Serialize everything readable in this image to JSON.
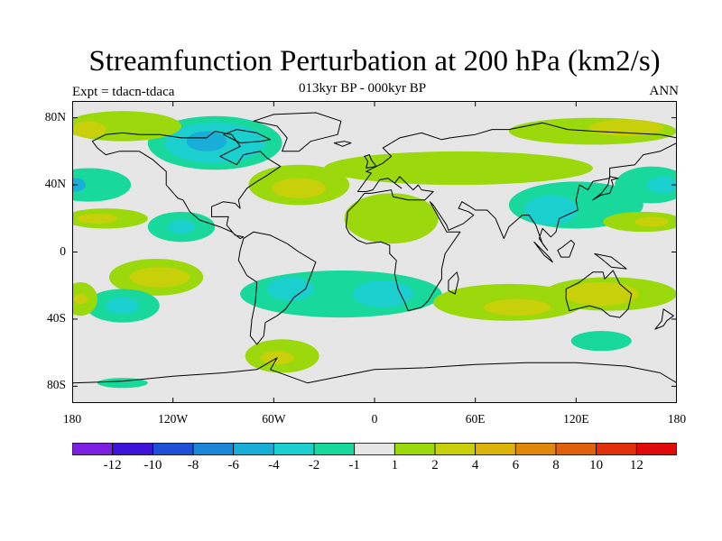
{
  "title": "Streamfunction Perturbation at 200 hPa (km2/s)",
  "subtitle": "013kyr BP - 000kyr BP",
  "experiment": "Expt = tdacn-tdaca",
  "season": "ANN",
  "map": {
    "projection": "cylindrical-equidistant",
    "lon_range": [
      -180,
      180
    ],
    "lat_range": [
      -90,
      90
    ],
    "lat_ticks": [
      {
        "value": 80,
        "label": "80N"
      },
      {
        "value": 40,
        "label": "40N"
      },
      {
        "value": 0,
        "label": "0"
      },
      {
        "value": -40,
        "label": "40S"
      },
      {
        "value": -80,
        "label": "80S"
      }
    ],
    "lon_ticks": [
      {
        "value": -180,
        "label": "180"
      },
      {
        "value": -120,
        "label": "120W"
      },
      {
        "value": -60,
        "label": "60W"
      },
      {
        "value": 0,
        "label": "0"
      },
      {
        "value": 60,
        "label": "60E"
      },
      {
        "value": 120,
        "label": "120E"
      },
      {
        "value": 180,
        "label": "180"
      }
    ],
    "background_color": "#e6e6e6",
    "coastline_color": "#000000"
  },
  "colorbar": {
    "colors": [
      "#7b1fe0",
      "#3d14d8",
      "#1f4fd6",
      "#1a86d8",
      "#18aed8",
      "#1ccfcf",
      "#18d89b",
      "#e6e6e6",
      "#9bd80c",
      "#c8d00a",
      "#dcb30a",
      "#e0870c",
      "#e0600c",
      "#e0300c",
      "#e00a0a"
    ],
    "labels": [
      "-12",
      "-10",
      "-8",
      "-6",
      "-4",
      "-2",
      "-1",
      "1",
      "2",
      "4",
      "6",
      "8",
      "10",
      "12"
    ]
  },
  "regions": [
    {
      "name": "arctic-canada-low",
      "fill": "#18d89b",
      "lon": -95,
      "lat": 65,
      "rx": 40,
      "ry": 16
    },
    {
      "name": "arctic-canada-core",
      "fill": "#1ccfcf",
      "lon": -95,
      "lat": 65,
      "rx": 30,
      "ry": 12
    },
    {
      "name": "arctic-canada-center",
      "fill": "#18aed8",
      "lon": -100,
      "lat": 66,
      "rx": 12,
      "ry": 6
    },
    {
      "name": "north-pacific-band",
      "fill": "#9bd80c",
      "lon": -150,
      "lat": 75,
      "rx": 35,
      "ry": 9
    },
    {
      "name": "north-pacific-high",
      "fill": "#c8d00a",
      "lon": -170,
      "lat": 73,
      "rx": 10,
      "ry": 5
    },
    {
      "name": "west-pacific-low",
      "fill": "#18d89b",
      "lon": -170,
      "lat": 40,
      "rx": 25,
      "ry": 10
    },
    {
      "name": "west-pacific-low-core",
      "fill": "#18aed8",
      "lon": -178,
      "lat": 40,
      "rx": 6,
      "ry": 4
    },
    {
      "name": "n-subtropical-pacific-high",
      "fill": "#9bd80c",
      "lon": -160,
      "lat": 20,
      "rx": 25,
      "ry": 6
    },
    {
      "name": "n-subtropical-pacific-high-core",
      "fill": "#c8d00a",
      "lon": -165,
      "lat": 20,
      "rx": 12,
      "ry": 3
    },
    {
      "name": "eastern-pacific-low",
      "fill": "#18d89b",
      "lon": -115,
      "lat": 15,
      "rx": 20,
      "ry": 9
    },
    {
      "name": "eastern-pacific-low-core",
      "fill": "#1ccfcf",
      "lon": -115,
      "lat": 15,
      "rx": 8,
      "ry": 4
    },
    {
      "name": "north-atlantic-band",
      "fill": "#9bd80c",
      "lon": -45,
      "lat": 40,
      "rx": 30,
      "ry": 12
    },
    {
      "name": "north-atlantic-high",
      "fill": "#c8d00a",
      "lon": -45,
      "lat": 38,
      "rx": 16,
      "ry": 6
    },
    {
      "name": "eurasia-band",
      "fill": "#9bd80c",
      "lon": 50,
      "lat": 50,
      "rx": 80,
      "ry": 10
    },
    {
      "name": "arctic-eurasia-band",
      "fill": "#9bd80c",
      "lon": 130,
      "lat": 72,
      "rx": 50,
      "ry": 8
    },
    {
      "name": "arctic-eurasia-high",
      "fill": "#c8d00a",
      "lon": 150,
      "lat": 74,
      "rx": 22,
      "ry": 5
    },
    {
      "name": "africa-band",
      "fill": "#9bd80c",
      "lon": 10,
      "lat": 20,
      "rx": 28,
      "ry": 15
    },
    {
      "name": "asia-low",
      "fill": "#18d89b",
      "lon": 120,
      "lat": 28,
      "rx": 40,
      "ry": 14
    },
    {
      "name": "asia-low-core",
      "fill": "#1ccfcf",
      "lon": 105,
      "lat": 25,
      "rx": 16,
      "ry": 9
    },
    {
      "name": "nw-pacific-low",
      "fill": "#18d89b",
      "lon": 165,
      "lat": 40,
      "rx": 22,
      "ry": 11
    },
    {
      "name": "nw-pacific-low-core",
      "fill": "#1ccfcf",
      "lon": 172,
      "lat": 40,
      "rx": 10,
      "ry": 5
    },
    {
      "name": "w-pacific-high",
      "fill": "#9bd80c",
      "lon": 160,
      "lat": 18,
      "rx": 24,
      "ry": 6
    },
    {
      "name": "w-pacific-high-core",
      "fill": "#c8d00a",
      "lon": 165,
      "lat": 18,
      "rx": 10,
      "ry": 3
    },
    {
      "name": "se-pacific-high",
      "fill": "#9bd80c",
      "lon": -130,
      "lat": -15,
      "rx": 28,
      "ry": 11
    },
    {
      "name": "se-pacific-high-core",
      "fill": "#c8d00a",
      "lon": -128,
      "lat": -15,
      "rx": 18,
      "ry": 6
    },
    {
      "name": "s-pacific-low",
      "fill": "#18d89b",
      "lon": -150,
      "lat": -32,
      "rx": 22,
      "ry": 10
    },
    {
      "name": "s-pacific-low-core",
      "fill": "#1ccfcf",
      "lon": -150,
      "lat": -32,
      "rx": 10,
      "ry": 5
    },
    {
      "name": "far-sw-pacific-high",
      "fill": "#9bd80c",
      "lon": -175,
      "lat": -28,
      "rx": 10,
      "ry": 10
    },
    {
      "name": "far-sw-pacific-high-core",
      "fill": "#c8d00a",
      "lon": -175,
      "lat": -28,
      "rx": 4,
      "ry": 3
    },
    {
      "name": "south-atlantic-low",
      "fill": "#18d89b",
      "lon": -20,
      "lat": -25,
      "rx": 60,
      "ry": 14
    },
    {
      "name": "south-atlantic-low-core-west",
      "fill": "#1ccfcf",
      "lon": -50,
      "lat": -22,
      "rx": 14,
      "ry": 7
    },
    {
      "name": "south-atlantic-low-core-east",
      "fill": "#1ccfcf",
      "lon": 5,
      "lat": -25,
      "rx": 18,
      "ry": 8
    },
    {
      "name": "south-atlantic-subpolar-high",
      "fill": "#9bd80c",
      "lon": -55,
      "lat": -62,
      "rx": 22,
      "ry": 10
    },
    {
      "name": "south-atlantic-subpolar-high-core",
      "fill": "#c8d00a",
      "lon": -58,
      "lat": -63,
      "rx": 10,
      "ry": 4
    },
    {
      "name": "indian-ocean-high",
      "fill": "#9bd80c",
      "lon": 80,
      "lat": -30,
      "rx": 45,
      "ry": 11
    },
    {
      "name": "indian-ocean-high-core",
      "fill": "#c8d00a",
      "lon": 85,
      "lat": -33,
      "rx": 20,
      "ry": 5
    },
    {
      "name": "australia-high",
      "fill": "#9bd80c",
      "lon": 140,
      "lat": -25,
      "rx": 40,
      "ry": 10
    },
    {
      "name": "australia-high-core",
      "fill": "#c8d00a",
      "lon": 135,
      "lat": -25,
      "rx": 22,
      "ry": 7
    },
    {
      "name": "southern-ocean-low",
      "fill": "#18d89b",
      "lon": 135,
      "lat": -53,
      "rx": 18,
      "ry": 6
    },
    {
      "name": "polar-low-strip",
      "fill": "#18d89b",
      "lon": -150,
      "lat": -78,
      "rx": 15,
      "ry": 3
    }
  ],
  "coastlines": {
    "north-america": [
      [
        -168,
        66
      ],
      [
        -160,
        70
      ],
      [
        -150,
        71
      ],
      [
        -140,
        70
      ],
      [
        -128,
        70
      ],
      [
        -115,
        68
      ],
      [
        -100,
        68
      ],
      [
        -95,
        72
      ],
      [
        -85,
        70
      ],
      [
        -80,
        63
      ],
      [
        -92,
        57
      ],
      [
        -82,
        52
      ],
      [
        -78,
        58
      ],
      [
        -68,
        60
      ],
      [
        -64,
        56
      ],
      [
        -56,
        51
      ],
      [
        -65,
        45
      ],
      [
        -70,
        42
      ],
      [
        -76,
        38
      ],
      [
        -81,
        31
      ],
      [
        -80,
        26
      ],
      [
        -83,
        29
      ],
      [
        -90,
        30
      ],
      [
        -97,
        27
      ],
      [
        -97,
        21
      ],
      [
        -87,
        21
      ],
      [
        -88,
        16
      ],
      [
        -83,
        10
      ],
      [
        -78,
        9
      ],
      [
        -80,
        8
      ],
      [
        -85,
        12
      ],
      [
        -92,
        15
      ],
      [
        -104,
        19
      ],
      [
        -110,
        24
      ],
      [
        -114,
        31
      ],
      [
        -117,
        32
      ],
      [
        -124,
        40
      ],
      [
        -124,
        48
      ],
      [
        -132,
        55
      ],
      [
        -140,
        60
      ],
      [
        -152,
        60
      ],
      [
        -160,
        58
      ],
      [
        -165,
        62
      ]
    ],
    "greenland": [
      [
        -55,
        60
      ],
      [
        -45,
        60
      ],
      [
        -38,
        66
      ],
      [
        -22,
        70
      ],
      [
        -20,
        78
      ],
      [
        -35,
        83
      ],
      [
        -60,
        82
      ],
      [
        -72,
        78
      ],
      [
        -58,
        75
      ],
      [
        -52,
        68
      ]
    ],
    "south-america": [
      [
        -78,
        8
      ],
      [
        -72,
        12
      ],
      [
        -62,
        10
      ],
      [
        -52,
        5
      ],
      [
        -45,
        0
      ],
      [
        -35,
        -6
      ],
      [
        -38,
        -14
      ],
      [
        -41,
        -22
      ],
      [
        -48,
        -27
      ],
      [
        -53,
        -34
      ],
      [
        -58,
        -38
      ],
      [
        -65,
        -42
      ],
      [
        -66,
        -50
      ],
      [
        -70,
        -55
      ],
      [
        -74,
        -50
      ],
      [
        -73,
        -40
      ],
      [
        -71,
        -30
      ],
      [
        -70,
        -18
      ],
      [
        -76,
        -14
      ],
      [
        -81,
        -5
      ],
      [
        -80,
        1
      ]
    ],
    "eurasia-africa": [
      [
        -10,
        36
      ],
      [
        -5,
        43
      ],
      [
        -2,
        47
      ],
      [
        -5,
        48
      ],
      [
        5,
        53
      ],
      [
        10,
        57
      ],
      [
        5,
        62
      ],
      [
        15,
        68
      ],
      [
        28,
        71
      ],
      [
        40,
        67
      ],
      [
        45,
        68
      ],
      [
        60,
        70
      ],
      [
        70,
        73
      ],
      [
        80,
        73
      ],
      [
        100,
        77
      ],
      [
        115,
        73
      ],
      [
        130,
        72
      ],
      [
        150,
        71
      ],
      [
        170,
        70
      ],
      [
        180,
        68
      ],
      [
        180,
        65
      ],
      [
        170,
        60
      ],
      [
        160,
        58
      ],
      [
        155,
        52
      ],
      [
        140,
        50
      ],
      [
        140,
        44
      ],
      [
        130,
        42
      ],
      [
        127,
        37
      ],
      [
        122,
        40
      ],
      [
        120,
        31
      ],
      [
        121,
        25
      ],
      [
        110,
        20
      ],
      [
        108,
        12
      ],
      [
        105,
        9
      ],
      [
        100,
        14
      ],
      [
        98,
        8
      ],
      [
        103,
        1
      ],
      [
        100,
        5
      ],
      [
        96,
        16
      ],
      [
        92,
        22
      ],
      [
        88,
        22
      ],
      [
        80,
        15
      ],
      [
        77,
        8
      ],
      [
        72,
        20
      ],
      [
        67,
        25
      ],
      [
        60,
        25
      ],
      [
        57,
        27
      ],
      [
        52,
        30
      ],
      [
        50,
        26
      ],
      [
        56,
        24
      ],
      [
        59,
        22
      ],
      [
        53,
        17
      ],
      [
        44,
        13
      ],
      [
        43,
        16
      ],
      [
        39,
        22
      ],
      [
        35,
        28
      ],
      [
        33,
        30
      ],
      [
        43,
        12
      ],
      [
        51,
        12
      ],
      [
        42,
        -1
      ],
      [
        40,
        -10
      ],
      [
        40,
        -16
      ],
      [
        35,
        -24
      ],
      [
        32,
        -29
      ],
      [
        28,
        -33
      ],
      [
        20,
        -35
      ],
      [
        18,
        -30
      ],
      [
        14,
        -22
      ],
      [
        12,
        -13
      ],
      [
        13,
        -5
      ],
      [
        9,
        -1
      ],
      [
        9,
        4
      ],
      [
        4,
        6
      ],
      [
        -5,
        5
      ],
      [
        -10,
        7
      ],
      [
        -15,
        11
      ],
      [
        -17,
        15
      ],
      [
        -16,
        24
      ],
      [
        -10,
        30
      ],
      [
        -6,
        35
      ],
      [
        -2,
        35
      ],
      [
        10,
        37
      ],
      [
        11,
        33
      ],
      [
        20,
        31
      ],
      [
        30,
        31
      ],
      [
        35,
        36
      ],
      [
        28,
        37
      ],
      [
        26,
        40
      ],
      [
        23,
        37
      ],
      [
        20,
        40
      ],
      [
        15,
        45
      ],
      [
        12,
        41
      ],
      [
        16,
        38
      ],
      [
        8,
        44
      ],
      [
        3,
        43
      ],
      [
        -1,
        37
      ],
      [
        -5,
        36
      ]
    ],
    "australia": [
      [
        114,
        -22
      ],
      [
        122,
        -18
      ],
      [
        130,
        -12
      ],
      [
        136,
        -12
      ],
      [
        137,
        -16
      ],
      [
        142,
        -11
      ],
      [
        146,
        -19
      ],
      [
        153,
        -25
      ],
      [
        151,
        -34
      ],
      [
        146,
        -39
      ],
      [
        140,
        -38
      ],
      [
        135,
        -34
      ],
      [
        128,
        -32
      ],
      [
        116,
        -35
      ],
      [
        114,
        -28
      ]
    ],
    "antarctica": [
      [
        -180,
        -78
      ],
      [
        -150,
        -77
      ],
      [
        -120,
        -74
      ],
      [
        -90,
        -72
      ],
      [
        -70,
        -70
      ],
      [
        -58,
        -63
      ],
      [
        -62,
        -70
      ],
      [
        -40,
        -78
      ],
      [
        -20,
        -74
      ],
      [
        0,
        -70
      ],
      [
        30,
        -69
      ],
      [
        60,
        -67
      ],
      [
        90,
        -66
      ],
      [
        120,
        -66
      ],
      [
        150,
        -68
      ],
      [
        170,
        -72
      ],
      [
        180,
        -78
      ]
    ],
    "uk": [
      [
        -5,
        50
      ],
      [
        1,
        51
      ],
      [
        -2,
        55
      ],
      [
        -3,
        58
      ],
      [
        -6,
        57
      ],
      [
        -4,
        54
      ]
    ],
    "japan": [
      [
        130,
        31
      ],
      [
        135,
        34
      ],
      [
        140,
        35
      ],
      [
        142,
        40
      ],
      [
        141,
        43
      ],
      [
        145,
        44
      ],
      [
        140,
        45
      ],
      [
        139,
        40
      ],
      [
        135,
        35
      ]
    ],
    "madagascar": [
      [
        49,
        -12
      ],
      [
        50,
        -16
      ],
      [
        48,
        -25
      ],
      [
        44,
        -23
      ],
      [
        44,
        -17
      ]
    ],
    "new-zealand": [
      [
        172,
        -34
      ],
      [
        178,
        -38
      ],
      [
        174,
        -41
      ],
      [
        172,
        -44
      ],
      [
        167,
        -46
      ],
      [
        171,
        -41
      ]
    ],
    "borneo": [
      [
        109,
        1
      ],
      [
        112,
        3
      ],
      [
        117,
        7
      ],
      [
        119,
        5
      ],
      [
        116,
        -3
      ],
      [
        111,
        -3
      ]
    ],
    "sumatra": [
      [
        95,
        6
      ],
      [
        104,
        -3
      ],
      [
        106,
        -6
      ],
      [
        101,
        -2
      ]
    ],
    "new-guinea": [
      [
        131,
        -1
      ],
      [
        141,
        -3
      ],
      [
        150,
        -10
      ],
      [
        141,
        -9
      ],
      [
        135,
        -4
      ]
    ],
    "iceland": [
      [
        -24,
        65
      ],
      [
        -18,
        66
      ],
      [
        -14,
        65
      ],
      [
        -19,
        63
      ]
    ],
    "baffin": [
      [
        -80,
        65
      ],
      [
        -68,
        66
      ],
      [
        -62,
        67
      ],
      [
        -70,
        71
      ],
      [
        -82,
        73
      ],
      [
        -90,
        70
      ]
    ]
  }
}
